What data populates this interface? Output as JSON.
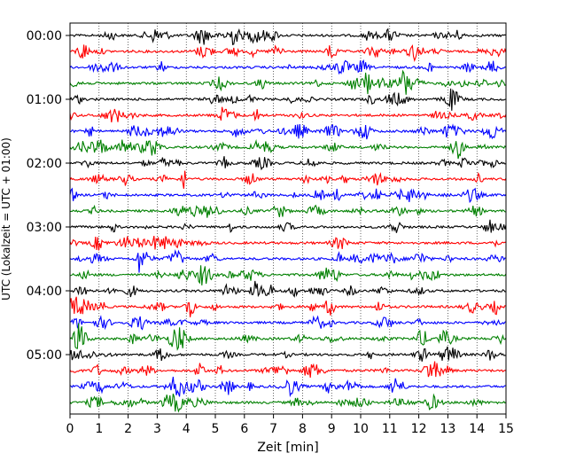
{
  "chart_data": {
    "type": "line",
    "title": "",
    "xlabel": "Zeit  [min]",
    "ylabel": "UTC (Lokalzeit = UTC + 01:00)",
    "xlim": [
      0,
      15
    ],
    "x_ticks": [
      "0",
      "1",
      "2",
      "3",
      "4",
      "5",
      "6",
      "7",
      "8",
      "9",
      "10",
      "11",
      "12",
      "13",
      "14",
      "15"
    ],
    "y_ticks": [
      "00:00",
      "01:00",
      "02:00",
      "03:00",
      "04:00",
      "05:00"
    ],
    "grid": "vertical dotted",
    "trace_interval_minutes": 15,
    "color_cycle": [
      "#000000",
      "#ff0000",
      "#0000ff",
      "#008000"
    ],
    "trace_count": 24
  }
}
